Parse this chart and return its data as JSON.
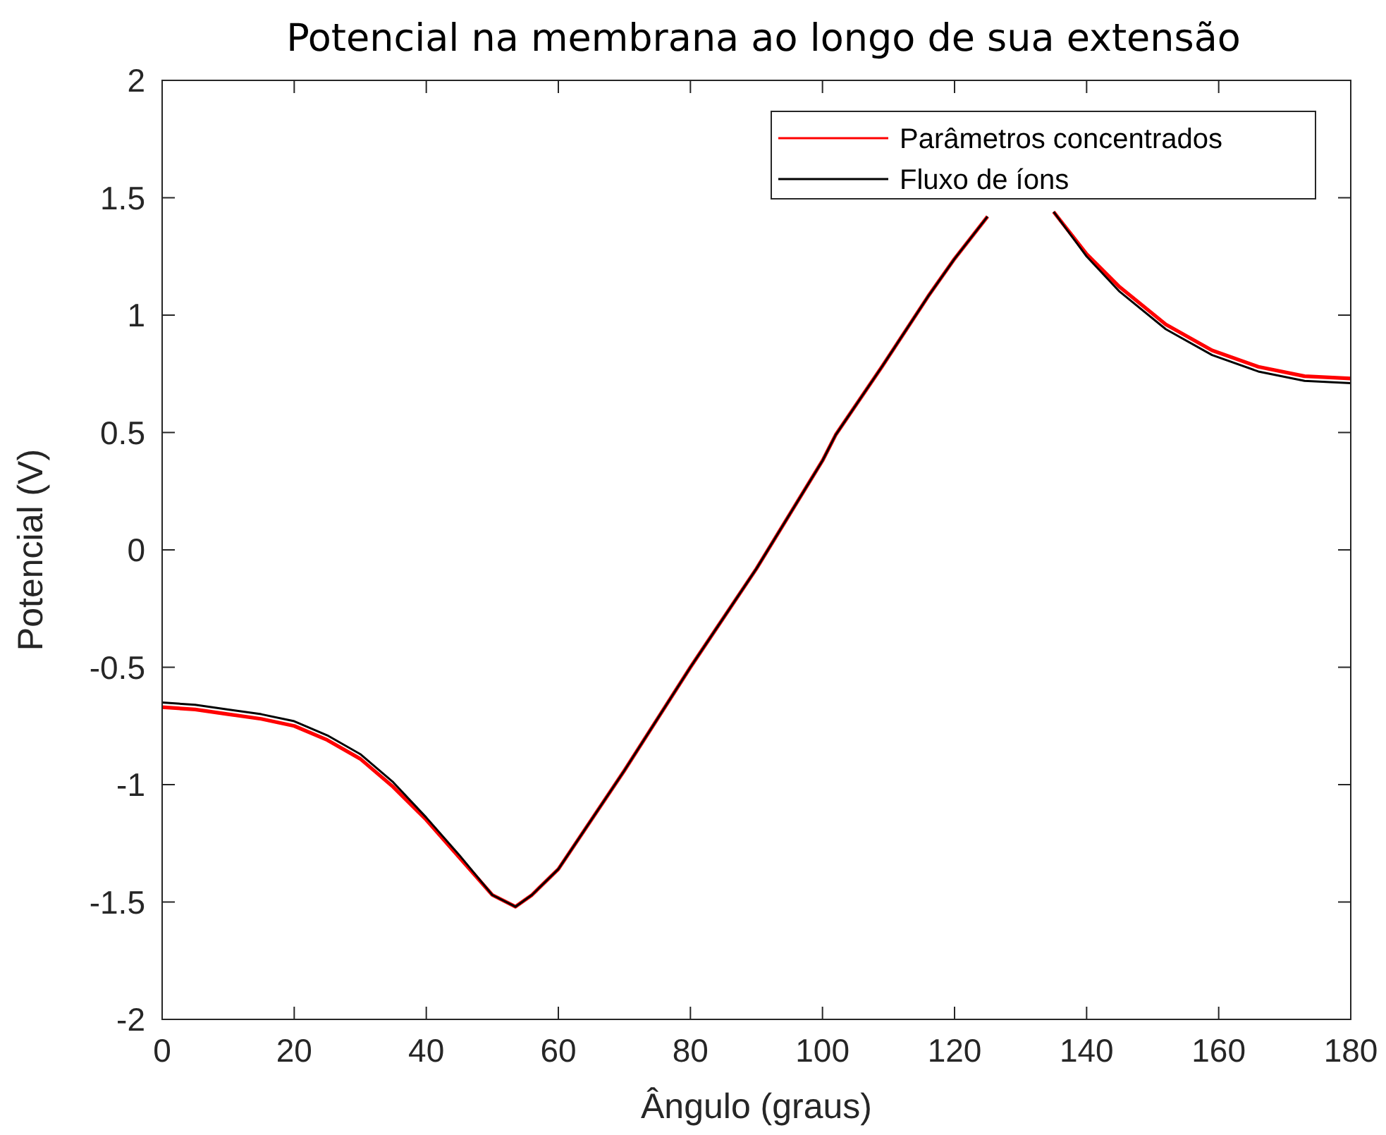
{
  "chart_data": {
    "type": "line",
    "title": "Potencial na membrana ao longo de sua extensão",
    "xlabel": "Ângulo (graus)",
    "ylabel": "Potencial (V)",
    "x": [
      0,
      5,
      10,
      15,
      20,
      25,
      30,
      35,
      40,
      45,
      50,
      53.5,
      56,
      60,
      70,
      80,
      90,
      100,
      102,
      109,
      116,
      120,
      125,
      130,
      133,
      135,
      140,
      145,
      152,
      159,
      166,
      173,
      180
    ],
    "series": [
      {
        "name": "Parâmetros concentrados",
        "color": "#ff0000",
        "values": [
          -0.67,
          -0.68,
          -0.7,
          -0.72,
          -0.75,
          -0.81,
          -0.89,
          -1.01,
          -1.15,
          -1.31,
          -1.47,
          -1.52,
          -1.47,
          -1.36,
          -0.94,
          -0.5,
          -0.08,
          0.38,
          0.49,
          0.78,
          1.08,
          1.24,
          1.42,
          null,
          null,
          1.44,
          1.26,
          1.12,
          0.96,
          0.85,
          0.78,
          0.74,
          0.73
        ]
      },
      {
        "name": "Fluxo de íons",
        "color": "#000000",
        "values": [
          -0.65,
          -0.66,
          -0.68,
          -0.7,
          -0.73,
          -0.79,
          -0.87,
          -0.99,
          -1.14,
          -1.3,
          -1.47,
          -1.52,
          -1.47,
          -1.36,
          -0.94,
          -0.5,
          -0.08,
          0.38,
          0.49,
          0.78,
          1.08,
          1.24,
          1.42,
          null,
          null,
          1.44,
          1.25,
          1.1,
          0.94,
          0.83,
          0.76,
          0.72,
          0.71
        ]
      }
    ],
    "xlim": [
      0,
      180
    ],
    "xticks": [
      0,
      20,
      40,
      60,
      80,
      100,
      120,
      140,
      160,
      180
    ],
    "ylim": [
      -2,
      2
    ],
    "yticks": [
      -2,
      -1.5,
      -1,
      -0.5,
      0,
      0.5,
      1,
      1.5,
      2
    ],
    "grid": false,
    "legend": "top right",
    "marker": "none",
    "line_style": "solid"
  }
}
